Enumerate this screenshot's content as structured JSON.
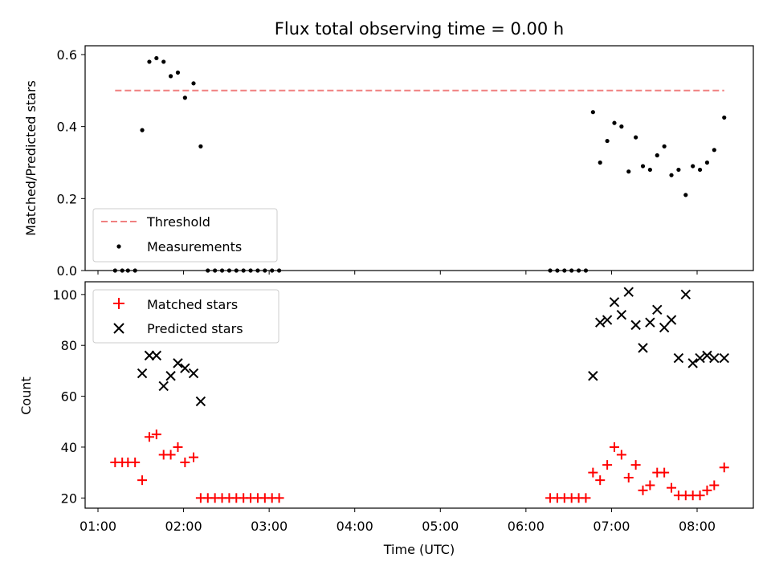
{
  "chart_data": [
    {
      "type": "scatter",
      "title": "Flux total observing time = 0.00 h",
      "xlabel": "",
      "ylabel": "Matched/Predicted stars",
      "xlim": [
        "01:00",
        "08:40"
      ],
      "ylim": [
        0,
        0.62
      ],
      "yticks": [
        0.0,
        0.2,
        0.4,
        0.6
      ],
      "ytick_labels": [
        "0.0",
        "0.2",
        "0.4",
        "0.6"
      ],
      "legend_position": "lower-left",
      "threshold": {
        "name": "Threshold",
        "value": 0.5,
        "x_range": [
          "01:12",
          "08:19"
        ],
        "color": "#f08080",
        "style": "dashed"
      },
      "series": [
        {
          "name": "Measurements",
          "color": "#000000",
          "points": [
            [
              "01:12",
              0.0
            ],
            [
              "01:17",
              0.0
            ],
            [
              "01:21",
              0.0
            ],
            [
              "01:26",
              0.0
            ],
            [
              "01:31",
              0.39
            ],
            [
              "01:36",
              0.58
            ],
            [
              "01:41",
              0.59
            ],
            [
              "01:46",
              0.58
            ],
            [
              "01:51",
              0.54
            ],
            [
              "01:56",
              0.55
            ],
            [
              "02:01",
              0.48
            ],
            [
              "02:07",
              0.52
            ],
            [
              "02:12",
              0.345
            ],
            [
              "02:17",
              0.0
            ],
            [
              "02:22",
              0.0
            ],
            [
              "02:27",
              0.0
            ],
            [
              "02:32",
              0.0
            ],
            [
              "02:37",
              0.0
            ],
            [
              "02:42",
              0.0
            ],
            [
              "02:47",
              0.0
            ],
            [
              "02:52",
              0.0
            ],
            [
              "02:57",
              0.0
            ],
            [
              "03:02",
              0.0
            ],
            [
              "03:07",
              0.0
            ],
            [
              "06:17",
              0.0
            ],
            [
              "06:22",
              0.0
            ],
            [
              "06:27",
              0.0
            ],
            [
              "06:32",
              0.0
            ],
            [
              "06:37",
              0.0
            ],
            [
              "06:42",
              0.0
            ],
            [
              "06:47",
              0.44
            ],
            [
              "06:52",
              0.3
            ],
            [
              "06:57",
              0.36
            ],
            [
              "07:02",
              0.41
            ],
            [
              "07:07",
              0.4
            ],
            [
              "07:12",
              0.275
            ],
            [
              "07:17",
              0.37
            ],
            [
              "07:22",
              0.29
            ],
            [
              "07:27",
              0.28
            ],
            [
              "07:32",
              0.32
            ],
            [
              "07:37",
              0.345
            ],
            [
              "07:42",
              0.265
            ],
            [
              "07:47",
              0.28
            ],
            [
              "07:52",
              0.21
            ],
            [
              "07:57",
              0.29
            ],
            [
              "08:02",
              0.28
            ],
            [
              "08:07",
              0.3
            ],
            [
              "08:12",
              0.335
            ],
            [
              "08:19",
              0.425
            ]
          ]
        }
      ]
    },
    {
      "type": "scatter",
      "title": "",
      "xlabel": "Time (UTC)",
      "ylabel": "Count",
      "xlim": [
        "01:00",
        "08:40"
      ],
      "ylim": [
        16,
        105
      ],
      "xticks": [
        "01:00",
        "02:00",
        "03:00",
        "04:00",
        "05:00",
        "06:00",
        "07:00",
        "08:00"
      ],
      "yticks": [
        20,
        40,
        60,
        80,
        100
      ],
      "ytick_labels": [
        "20",
        "40",
        "60",
        "80",
        "100"
      ],
      "legend_position": "upper-left",
      "series": [
        {
          "name": "Matched stars",
          "marker": "plus",
          "color": "#ff0000",
          "points": [
            [
              "01:12",
              34
            ],
            [
              "01:17",
              34
            ],
            [
              "01:21",
              34
            ],
            [
              "01:26",
              34
            ],
            [
              "01:31",
              27
            ],
            [
              "01:36",
              44
            ],
            [
              "01:41",
              45
            ],
            [
              "01:46",
              37
            ],
            [
              "01:51",
              37
            ],
            [
              "01:56",
              40
            ],
            [
              "02:01",
              34
            ],
            [
              "02:07",
              36
            ],
            [
              "02:12",
              20
            ],
            [
              "02:17",
              20
            ],
            [
              "02:22",
              20
            ],
            [
              "02:27",
              20
            ],
            [
              "02:32",
              20
            ],
            [
              "02:37",
              20
            ],
            [
              "02:42",
              20
            ],
            [
              "02:47",
              20
            ],
            [
              "02:52",
              20
            ],
            [
              "02:57",
              20
            ],
            [
              "03:02",
              20
            ],
            [
              "03:07",
              20
            ],
            [
              "06:17",
              20
            ],
            [
              "06:22",
              20
            ],
            [
              "06:27",
              20
            ],
            [
              "06:32",
              20
            ],
            [
              "06:37",
              20
            ],
            [
              "06:42",
              20
            ],
            [
              "06:47",
              30
            ],
            [
              "06:52",
              27
            ],
            [
              "06:57",
              33
            ],
            [
              "07:02",
              40
            ],
            [
              "07:07",
              37
            ],
            [
              "07:12",
              28
            ],
            [
              "07:17",
              33
            ],
            [
              "07:22",
              23
            ],
            [
              "07:27",
              25
            ],
            [
              "07:32",
              30
            ],
            [
              "07:37",
              30
            ],
            [
              "07:42",
              24
            ],
            [
              "07:47",
              21
            ],
            [
              "07:52",
              21
            ],
            [
              "07:57",
              21
            ],
            [
              "08:02",
              21
            ],
            [
              "08:07",
              23
            ],
            [
              "08:12",
              25
            ],
            [
              "08:19",
              32
            ]
          ]
        },
        {
          "name": "Predicted stars",
          "marker": "x",
          "color": "#000000",
          "points": [
            [
              "01:31",
              69
            ],
            [
              "01:36",
              76
            ],
            [
              "01:41",
              76
            ],
            [
              "01:46",
              64
            ],
            [
              "01:51",
              68
            ],
            [
              "01:56",
              73
            ],
            [
              "02:01",
              71
            ],
            [
              "02:07",
              69
            ],
            [
              "02:12",
              58
            ],
            [
              "06:47",
              68
            ],
            [
              "06:52",
              89
            ],
            [
              "06:57",
              90
            ],
            [
              "07:02",
              97
            ],
            [
              "07:07",
              92
            ],
            [
              "07:12",
              101
            ],
            [
              "07:17",
              88
            ],
            [
              "07:22",
              79
            ],
            [
              "07:27",
              89
            ],
            [
              "07:32",
              94
            ],
            [
              "07:37",
              87
            ],
            [
              "07:42",
              90
            ],
            [
              "07:47",
              75
            ],
            [
              "07:52",
              100
            ],
            [
              "07:57",
              73
            ],
            [
              "08:02",
              75
            ],
            [
              "08:07",
              76
            ],
            [
              "08:12",
              75
            ],
            [
              "08:19",
              75
            ]
          ]
        }
      ]
    }
  ]
}
